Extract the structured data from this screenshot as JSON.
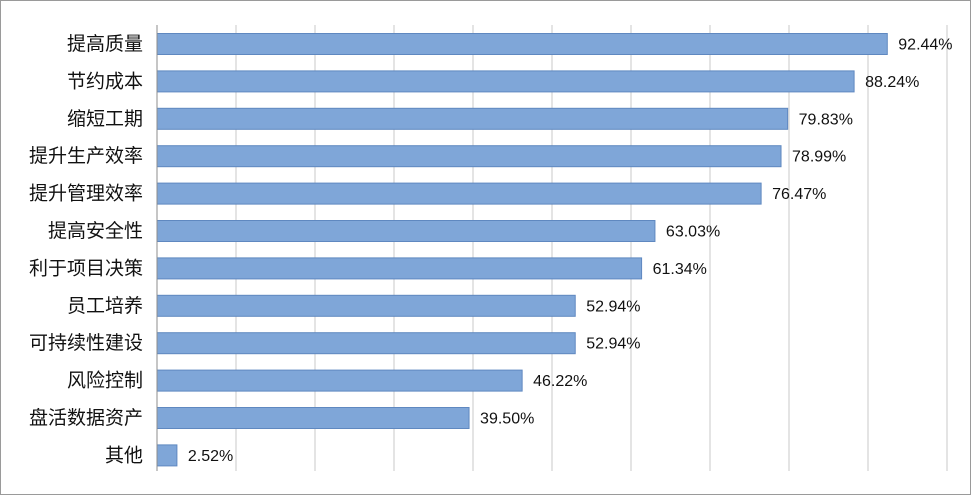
{
  "chart_data": {
    "type": "bar",
    "orientation": "horizontal",
    "title": "",
    "xlabel": "",
    "ylabel": "",
    "xlim": [
      0,
      100
    ],
    "grid": true,
    "legend": "none",
    "bar_color": "#7fa6d8",
    "bar_edge_color": "#5f88c0",
    "grid_color": "#c8c8c8",
    "categories": [
      "提高质量",
      "节约成本",
      "缩短工期",
      "提升生产效率",
      "提升管理效率",
      "提高安全性",
      "利于项目决策",
      "员工培养",
      "可持续性建设",
      "风险控制",
      "盘活数据资产",
      "其他"
    ],
    "values": [
      92.44,
      88.24,
      79.83,
      78.99,
      76.47,
      63.03,
      61.34,
      52.94,
      52.94,
      46.22,
      39.5,
      2.52
    ],
    "value_labels": [
      "92.44%",
      "88.24%",
      "79.83%",
      "78.99%",
      "76.47%",
      "63.03%",
      "61.34%",
      "52.94%",
      "52.94%",
      "46.22%",
      "39.50%",
      "2.52%"
    ]
  }
}
